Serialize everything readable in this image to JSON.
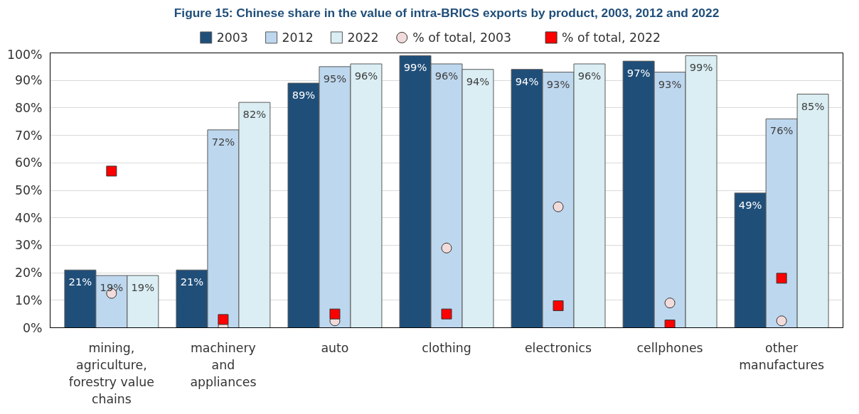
{
  "chart_data": {
    "type": "bar",
    "title": "Figure 15: Chinese share in the value of intra-BRICS exports by product, 2003, 2012 and 2022",
    "categories": [
      "mining,\nagriculture,\nforestry value\nchains",
      "machinery\nand\nappliances",
      "auto",
      "clothing",
      "electronics",
      "cellphones",
      "other\nmanufactures"
    ],
    "series": [
      {
        "name": "2003",
        "color": "#1f4e79",
        "values": [
          21,
          21,
          89,
          99,
          94,
          97,
          49
        ],
        "value_labels": [
          "21%",
          "21%",
          "89%",
          "99%",
          "94%",
          "97%",
          "49%"
        ]
      },
      {
        "name": "2012",
        "color": "#bdd7ee",
        "values": [
          19,
          72,
          95,
          96,
          93,
          93,
          76
        ],
        "value_labels": [
          "19%",
          "72%",
          "95%",
          "96%",
          "93%",
          "93%",
          "76%"
        ]
      },
      {
        "name": "2022",
        "color": "#daeef3",
        "values": [
          19,
          82,
          96,
          94,
          96,
          99,
          85
        ],
        "value_labels": [
          "19%",
          "82%",
          "96%",
          "94%",
          "96%",
          "99%",
          "85%"
        ]
      },
      {
        "name": "% of total, 2003",
        "type": "scatter",
        "marker": "circle",
        "color": "#f2dcdb",
        "values": [
          12.5,
          0.5,
          2.5,
          29,
          44,
          9,
          2.5
        ]
      },
      {
        "name": "% of total, 2022",
        "type": "scatter",
        "marker": "square",
        "color": "#ff0000",
        "values": [
          57,
          3,
          5,
          5,
          8,
          1,
          18
        ]
      }
    ],
    "ylim": [
      0,
      100
    ],
    "yticks": [
      {
        "value": 0,
        "label": "0%"
      },
      {
        "value": 10,
        "label": "10%"
      },
      {
        "value": 20,
        "label": "20%"
      },
      {
        "value": 30,
        "label": "30%"
      },
      {
        "value": 40,
        "label": "40%"
      },
      {
        "value": 50,
        "label": "50%"
      },
      {
        "value": 60,
        "label": "60%"
      },
      {
        "value": 70,
        "label": "70%"
      },
      {
        "value": 80,
        "label": "80%"
      },
      {
        "value": 90,
        "label": "90%"
      },
      {
        "value": 100,
        "label": "100%"
      }
    ],
    "grid": "y",
    "legend": "top"
  }
}
